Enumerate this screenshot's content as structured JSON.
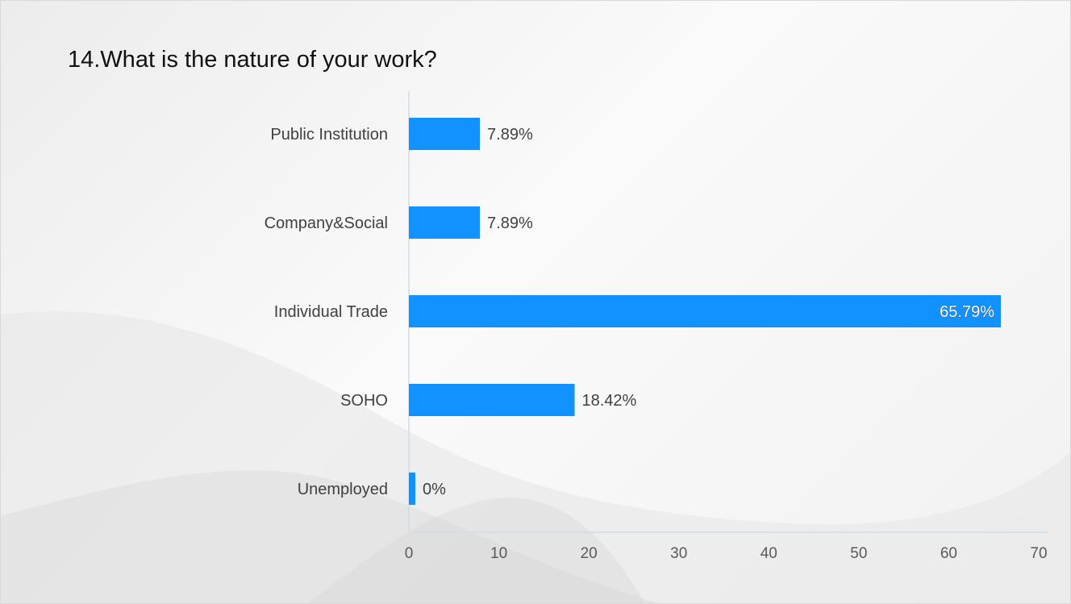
{
  "title": "14.What is the nature of your work?",
  "colors": {
    "bar": "#1192FF",
    "axis": "#D0DCEA",
    "label": "#404040",
    "tick": "#595959"
  },
  "chart_data": {
    "type": "bar",
    "orientation": "horizontal",
    "title": "14.What is the nature of your work?",
    "categories": [
      "Public Institution",
      "Company&Social",
      "Individual Trade",
      "SOHO",
      "Unemployed"
    ],
    "values": [
      7.89,
      7.89,
      65.79,
      18.42,
      0
    ],
    "value_labels": [
      "7.89%",
      "7.89%",
      "65.79%",
      "18.42%",
      "0%"
    ],
    "xlim": [
      0,
      70
    ],
    "xticks": [
      0,
      10,
      20,
      30,
      40,
      50,
      60,
      70
    ],
    "xlabel": "",
    "ylabel": "",
    "grid": false,
    "legend": "none"
  }
}
